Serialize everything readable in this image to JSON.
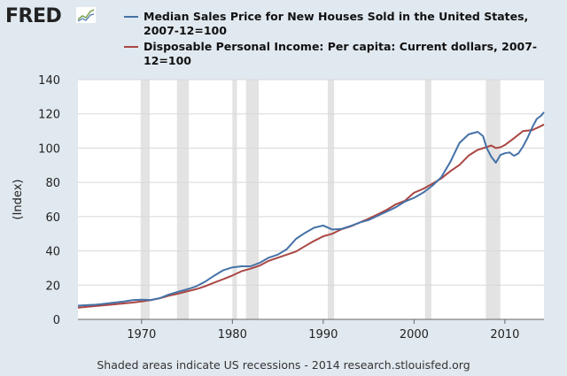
{
  "logo": {
    "text": "FRED",
    "icon": "fred-graph-icon"
  },
  "colors": {
    "background": "#e1e9f0",
    "plot_background": "#ffffff",
    "recession_shade": "#e3e3e3",
    "series_price": "#4572a7",
    "series_income": "#aa4643",
    "grid": "#d8d8d8"
  },
  "footer": {
    "text": "Shaded areas indicate US recessions - 2014 research.stlouisfed.org"
  },
  "chart_data": {
    "type": "line",
    "ylabel": "(Index)",
    "xlabel": "",
    "xlim": [
      1963.0,
      2014.3
    ],
    "ylim": [
      0,
      140
    ],
    "y_ticks": [
      0,
      20,
      40,
      60,
      80,
      100,
      120,
      140
    ],
    "x_ticks": [
      1970,
      1980,
      1990,
      2000,
      2010
    ],
    "grid": "horizontal",
    "legend_position": "top",
    "recessions": [
      [
        1969.9,
        1970.9
      ],
      [
        1973.9,
        1975.2
      ],
      [
        1980.0,
        1980.5
      ],
      [
        1981.5,
        1982.9
      ],
      [
        1990.5,
        1991.2
      ],
      [
        2001.2,
        2001.9
      ],
      [
        2007.9,
        2009.5
      ]
    ],
    "series": [
      {
        "name": "Median Sales Price for New Houses Sold in the United States, 2007-12=100",
        "color": "#4572a7",
        "x": [
          1963,
          1964,
          1965,
          1966,
          1967,
          1968,
          1969,
          1970,
          1971,
          1972,
          1973,
          1974,
          1975,
          1976,
          1977,
          1978,
          1979,
          1980,
          1981,
          1982,
          1983,
          1984,
          1985,
          1986,
          1987,
          1988,
          1989,
          1990,
          1991,
          1992,
          1993,
          1994,
          1995,
          1996,
          1997,
          1998,
          1999,
          2000,
          2001,
          2002,
          2003,
          2004,
          2005,
          2006,
          2007,
          2007.6,
          2008,
          2008.5,
          2009,
          2009.5,
          2010,
          2010.5,
          2011,
          2011.5,
          2012,
          2012.5,
          2013,
          2013.5,
          2014,
          2014.3
        ],
        "values": [
          8,
          8.3,
          8.6,
          9.2,
          9.8,
          10.4,
          11.2,
          11.5,
          11.3,
          12.4,
          14.5,
          16.1,
          17.5,
          19.2,
          22.0,
          25.5,
          28.7,
          30.4,
          31.0,
          31.0,
          33.0,
          36.0,
          37.8,
          41.0,
          47.0,
          50.5,
          53.5,
          54.8,
          52.5,
          52.8,
          54.5,
          56.5,
          58.0,
          60.5,
          63.0,
          65.5,
          68.8,
          71.0,
          74.0,
          78.0,
          83.0,
          92.0,
          103.0,
          108.0,
          109.5,
          107.0,
          100.0,
          95.0,
          91.5,
          96.0,
          97.0,
          97.5,
          95.5,
          97.0,
          101.0,
          106.0,
          112.0,
          117.0,
          119.0,
          121.0
        ]
      },
      {
        "name": "Disposable Personal Income: Per capita: Current dollars, 2007-12=100",
        "color": "#aa4643",
        "x": [
          1963,
          1965,
          1967,
          1969,
          1970,
          1971,
          1972,
          1973,
          1974,
          1975,
          1976,
          1977,
          1978,
          1979,
          1980,
          1981,
          1982,
          1983,
          1984,
          1985,
          1986,
          1987,
          1988,
          1989,
          1990,
          1991,
          1992,
          1993,
          1994,
          1995,
          1996,
          1997,
          1998,
          1999,
          2000,
          2001,
          2002,
          2003,
          2004,
          2005,
          2006,
          2007,
          2007.9,
          2008.5,
          2009,
          2009.5,
          2010,
          2011,
          2012,
          2013,
          2014,
          2014.3
        ],
        "values": [
          6.8,
          7.8,
          8.8,
          9.8,
          10.5,
          11.2,
          12.3,
          13.8,
          15.0,
          16.3,
          17.6,
          19.3,
          21.5,
          23.5,
          25.6,
          28.1,
          29.6,
          31.4,
          34.2,
          36.0,
          37.8,
          39.6,
          42.8,
          45.8,
          48.5,
          50.0,
          52.6,
          54.3,
          56.5,
          58.8,
          61.3,
          64.0,
          67.2,
          69.3,
          74.0,
          76.2,
          79.2,
          82.3,
          86.6,
          90.2,
          95.6,
          99.0,
          100.5,
          101.5,
          100.0,
          100.5,
          101.8,
          105.8,
          110.0,
          110.5,
          113.0,
          113.8
        ]
      }
    ]
  }
}
